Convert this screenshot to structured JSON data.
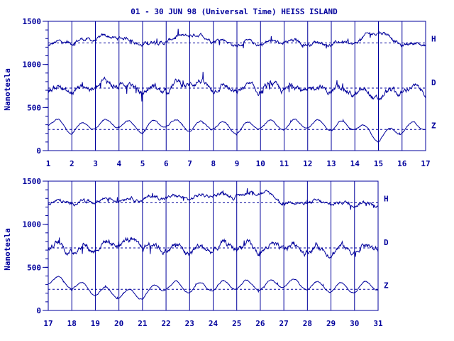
{
  "chart_data": {
    "type": "line",
    "title": "01 - 30 JUN 98 (Universal Time) HEISS ISLAND",
    "ylabel": "Nanotesla",
    "colors": {
      "line": "#00009c",
      "background": "#ffffff"
    },
    "yticks": [
      "0",
      "500",
      "1000",
      "1500"
    ],
    "ylim": [
      0,
      1500
    ],
    "series_labels": [
      "H",
      "D",
      "Z"
    ],
    "baselines": {
      "H": 1250,
      "D": 725,
      "Z": 245
    },
    "panels": [
      {
        "xlim": [
          1,
          17
        ],
        "xticks": [
          "1",
          "2",
          "3",
          "4",
          "5",
          "6",
          "7",
          "8",
          "9",
          "10",
          "11",
          "12",
          "13",
          "14",
          "15",
          "16",
          "17"
        ],
        "series": [
          {
            "name": "H",
            "x": [
              1,
              2,
              3,
              4,
              5,
              6,
              7,
              8,
              9,
              10,
              11,
              12,
              13,
              14,
              15,
              16,
              17
            ],
            "values": [
              1230,
              1260,
              1300,
              1320,
              1240,
              1270,
              1350,
              1300,
              1230,
              1250,
              1260,
              1250,
              1240,
              1250,
              1400,
              1230,
              1240
            ]
          },
          {
            "name": "D",
            "x": [
              1,
              2,
              3,
              4,
              5,
              6,
              7,
              8,
              9,
              10,
              11,
              12,
              13,
              14,
              15,
              16,
              17
            ],
            "values": [
              720,
              700,
              750,
              780,
              700,
              720,
              800,
              740,
              700,
              720,
              730,
              710,
              720,
              680,
              620,
              700,
              720
            ]
          },
          {
            "name": "Z",
            "x": [
              1,
              2,
              3,
              4,
              5,
              6,
              7,
              8,
              9,
              10,
              11,
              12,
              13,
              14,
              15,
              16,
              17
            ],
            "values": [
              340,
              250,
              300,
              320,
              260,
              330,
              280,
              300,
              250,
              310,
              290,
              320,
              280,
              300,
              150,
              260,
              300
            ]
          }
        ]
      },
      {
        "xlim": [
          17,
          31
        ],
        "xticks": [
          "17",
          "18",
          "19",
          "20",
          "21",
          "22",
          "23",
          "24",
          "25",
          "26",
          "27",
          "28",
          "29",
          "30",
          "31"
        ],
        "series": [
          {
            "name": "H",
            "x": [
              17,
              18,
              19,
              20,
              21,
              22,
              23,
              24,
              25,
              26,
              27,
              28,
              29,
              30,
              31
            ],
            "values": [
              1260,
              1250,
              1280,
              1300,
              1300,
              1320,
              1300,
              1350,
              1330,
              1380,
              1260,
              1250,
              1240,
              1250,
              1230
            ]
          },
          {
            "name": "D",
            "x": [
              17,
              18,
              19,
              20,
              21,
              22,
              23,
              24,
              25,
              26,
              27,
              28,
              29,
              30,
              31
            ],
            "values": [
              760,
              700,
              740,
              800,
              760,
              730,
              700,
              720,
              760,
              700,
              740,
              720,
              700,
              720,
              740
            ]
          },
          {
            "name": "Z",
            "x": [
              17,
              18,
              19,
              20,
              21,
              22,
              23,
              24,
              25,
              26,
              27,
              28,
              29,
              30,
              31
            ],
            "values": [
              360,
              300,
              230,
              200,
              180,
              300,
              260,
              280,
              300,
              290,
              320,
              290,
              270,
              260,
              300
            ]
          }
        ]
      }
    ]
  }
}
